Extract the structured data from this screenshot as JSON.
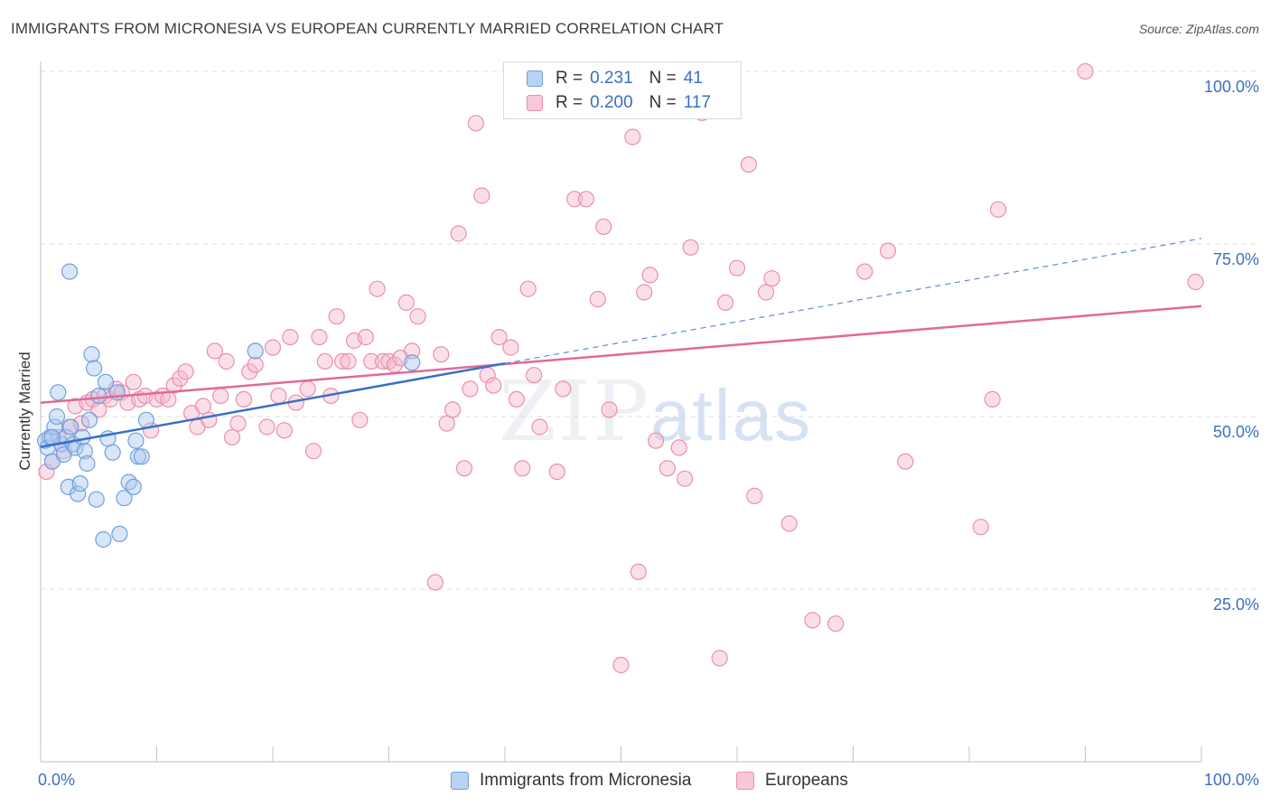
{
  "header": {
    "title": "IMMIGRANTS FROM MICRONESIA VS EUROPEAN CURRENTLY MARRIED CORRELATION CHART",
    "source": "Source: ZipAtlas.com"
  },
  "watermark": {
    "zip": "ZIP",
    "atlas": "atlas"
  },
  "legend": {
    "rows": [
      {
        "r_label": "R =",
        "r_value": "0.231",
        "n_label": "N =",
        "n_value": "41"
      },
      {
        "r_label": "R =",
        "r_value": "0.200",
        "n_label": "N =",
        "n_value": "117"
      }
    ],
    "bottom": [
      "Immigrants from Micronesia",
      "Europeans"
    ]
  },
  "colors": {
    "blue_fill": "#a8c8f0",
    "blue_stroke": "#6fa0dc",
    "blue_line": "#3571c8",
    "pink_fill": "#f5b8cc",
    "pink_stroke": "#ea8fb0",
    "pink_line": "#e06a98",
    "tick_text": "#3b6fc4"
  },
  "chart_data": {
    "type": "scatter",
    "title": "IMMIGRANTS FROM MICRONESIA VS EUROPEAN CURRENTLY MARRIED CORRELATION CHART",
    "xlabel": "",
    "ylabel": "Currently Married",
    "xlim": [
      0,
      100
    ],
    "ylim": [
      0,
      100
    ],
    "x_tick_labels": [
      "0.0%",
      "100.0%"
    ],
    "y_ticks": [
      25,
      50,
      75,
      100
    ],
    "y_tick_labels": [
      "25.0%",
      "50.0%",
      "75.0%",
      "100.0%"
    ],
    "grid": true,
    "series": [
      {
        "name": "Immigrants from Micronesia",
        "color": "#a8c8f0",
        "trend": {
          "x": [
            0,
            40
          ],
          "y": [
            45.6,
            57.7
          ]
        },
        "trend_extended": {
          "x": [
            40,
            100
          ],
          "y": [
            57.7,
            75.8
          ]
        },
        "points": [
          [
            0.4,
            46.5
          ],
          [
            0.6,
            45.5
          ],
          [
            0.8,
            47.0
          ],
          [
            1.0,
            43.5
          ],
          [
            1.2,
            48.5
          ],
          [
            1.4,
            50.0
          ],
          [
            1.5,
            53.5
          ],
          [
            1.8,
            46.0
          ],
          [
            2.0,
            44.5
          ],
          [
            2.2,
            47.0
          ],
          [
            2.4,
            39.8
          ],
          [
            2.6,
            48.5
          ],
          [
            2.8,
            46.0
          ],
          [
            3.0,
            45.5
          ],
          [
            3.2,
            38.8
          ],
          [
            3.4,
            40.3
          ],
          [
            3.6,
            47.0
          ],
          [
            3.8,
            45.0
          ],
          [
            4.0,
            43.2
          ],
          [
            4.2,
            49.5
          ],
          [
            4.4,
            59.0
          ],
          [
            4.6,
            57.0
          ],
          [
            4.8,
            38.0
          ],
          [
            5.0,
            53.0
          ],
          [
            5.4,
            32.2
          ],
          [
            5.6,
            55.0
          ],
          [
            5.8,
            46.8
          ],
          [
            6.2,
            44.8
          ],
          [
            6.6,
            53.5
          ],
          [
            6.8,
            33.0
          ],
          [
            7.2,
            38.2
          ],
          [
            7.6,
            40.5
          ],
          [
            8.0,
            39.8
          ],
          [
            8.2,
            46.5
          ],
          [
            8.4,
            44.2
          ],
          [
            8.7,
            44.2
          ],
          [
            9.1,
            49.5
          ],
          [
            2.5,
            71.0
          ],
          [
            18.5,
            59.5
          ],
          [
            32.0,
            57.8
          ],
          [
            1.0,
            47.0
          ]
        ]
      },
      {
        "name": "Europeans",
        "color": "#f5b8cc",
        "trend": {
          "x": [
            0,
            100
          ],
          "y": [
            52.0,
            66.0
          ]
        },
        "points": [
          [
            0.5,
            42.0
          ],
          [
            1.0,
            43.5
          ],
          [
            1.5,
            47.0
          ],
          [
            2.0,
            45.0
          ],
          [
            2.5,
            48.5
          ],
          [
            3.0,
            51.5
          ],
          [
            3.5,
            49.0
          ],
          [
            4.0,
            52.0
          ],
          [
            4.5,
            52.5
          ],
          [
            5.0,
            51.0
          ],
          [
            5.5,
            53.0
          ],
          [
            6.0,
            52.5
          ],
          [
            6.5,
            54.0
          ],
          [
            7.0,
            53.5
          ],
          [
            7.5,
            52.0
          ],
          [
            8.0,
            55.0
          ],
          [
            8.5,
            52.5
          ],
          [
            9.0,
            53.0
          ],
          [
            9.5,
            48.0
          ],
          [
            10.0,
            52.5
          ],
          [
            10.5,
            53.0
          ],
          [
            11.0,
            52.5
          ],
          [
            11.5,
            54.5
          ],
          [
            12.0,
            55.5
          ],
          [
            12.5,
            56.5
          ],
          [
            13.0,
            50.5
          ],
          [
            13.5,
            48.5
          ],
          [
            14.0,
            51.5
          ],
          [
            14.5,
            49.5
          ],
          [
            15.0,
            59.5
          ],
          [
            15.5,
            53.0
          ],
          [
            16.0,
            58.0
          ],
          [
            16.5,
            47.0
          ],
          [
            17.0,
            49.0
          ],
          [
            17.5,
            52.5
          ],
          [
            18.0,
            56.5
          ],
          [
            18.5,
            57.5
          ],
          [
            19.5,
            48.5
          ],
          [
            20.0,
            60.0
          ],
          [
            20.5,
            53.0
          ],
          [
            21.0,
            48.0
          ],
          [
            21.5,
            61.5
          ],
          [
            22.0,
            52.0
          ],
          [
            23.0,
            54.0
          ],
          [
            23.5,
            45.0
          ],
          [
            24.0,
            61.5
          ],
          [
            24.5,
            58.0
          ],
          [
            25.0,
            53.0
          ],
          [
            25.5,
            64.5
          ],
          [
            26.0,
            58.0
          ],
          [
            26.5,
            58.0
          ],
          [
            27.0,
            61.0
          ],
          [
            27.5,
            49.5
          ],
          [
            28.0,
            61.5
          ],
          [
            28.5,
            58.0
          ],
          [
            29.0,
            68.5
          ],
          [
            29.5,
            58.0
          ],
          [
            30.0,
            58.0
          ],
          [
            30.5,
            57.5
          ],
          [
            31.0,
            58.5
          ],
          [
            31.5,
            66.5
          ],
          [
            32.0,
            59.5
          ],
          [
            32.5,
            64.5
          ],
          [
            34.0,
            26.0
          ],
          [
            34.5,
            59.0
          ],
          [
            35.0,
            49.0
          ],
          [
            35.5,
            51.0
          ],
          [
            36.0,
            76.5
          ],
          [
            36.5,
            42.5
          ],
          [
            37.0,
            54.0
          ],
          [
            37.5,
            92.5
          ],
          [
            38.0,
            82.0
          ],
          [
            38.5,
            56.0
          ],
          [
            39.0,
            54.5
          ],
          [
            39.5,
            61.5
          ],
          [
            40.5,
            60.0
          ],
          [
            41.0,
            52.5
          ],
          [
            41.5,
            42.5
          ],
          [
            42.0,
            68.5
          ],
          [
            42.5,
            56.0
          ],
          [
            43.0,
            48.5
          ],
          [
            44.5,
            42.0
          ],
          [
            45.0,
            54.0
          ],
          [
            46.0,
            81.5
          ],
          [
            47.0,
            81.5
          ],
          [
            48.0,
            67.0
          ],
          [
            48.5,
            77.5
          ],
          [
            49.0,
            51.0
          ],
          [
            50.0,
            14.0
          ],
          [
            51.0,
            90.5
          ],
          [
            51.5,
            27.5
          ],
          [
            52.0,
            68.0
          ],
          [
            52.5,
            70.5
          ],
          [
            53.0,
            46.5
          ],
          [
            54.0,
            42.5
          ],
          [
            55.0,
            45.5
          ],
          [
            55.5,
            41.0
          ],
          [
            56.0,
            74.5
          ],
          [
            57.0,
            94.0
          ],
          [
            58.5,
            15.0
          ],
          [
            59.0,
            66.5
          ],
          [
            60.0,
            71.5
          ],
          [
            61.0,
            86.5
          ],
          [
            61.5,
            38.5
          ],
          [
            62.5,
            68.0
          ],
          [
            63.0,
            70.0
          ],
          [
            64.5,
            34.5
          ],
          [
            66.5,
            20.5
          ],
          [
            68.5,
            20.0
          ],
          [
            71.0,
            71.0
          ],
          [
            73.0,
            74.0
          ],
          [
            74.5,
            43.5
          ],
          [
            81.0,
            34.0
          ],
          [
            82.0,
            52.5
          ],
          [
            82.5,
            80.0
          ],
          [
            90.0,
            100.0
          ],
          [
            99.5,
            69.5
          ]
        ]
      }
    ]
  }
}
